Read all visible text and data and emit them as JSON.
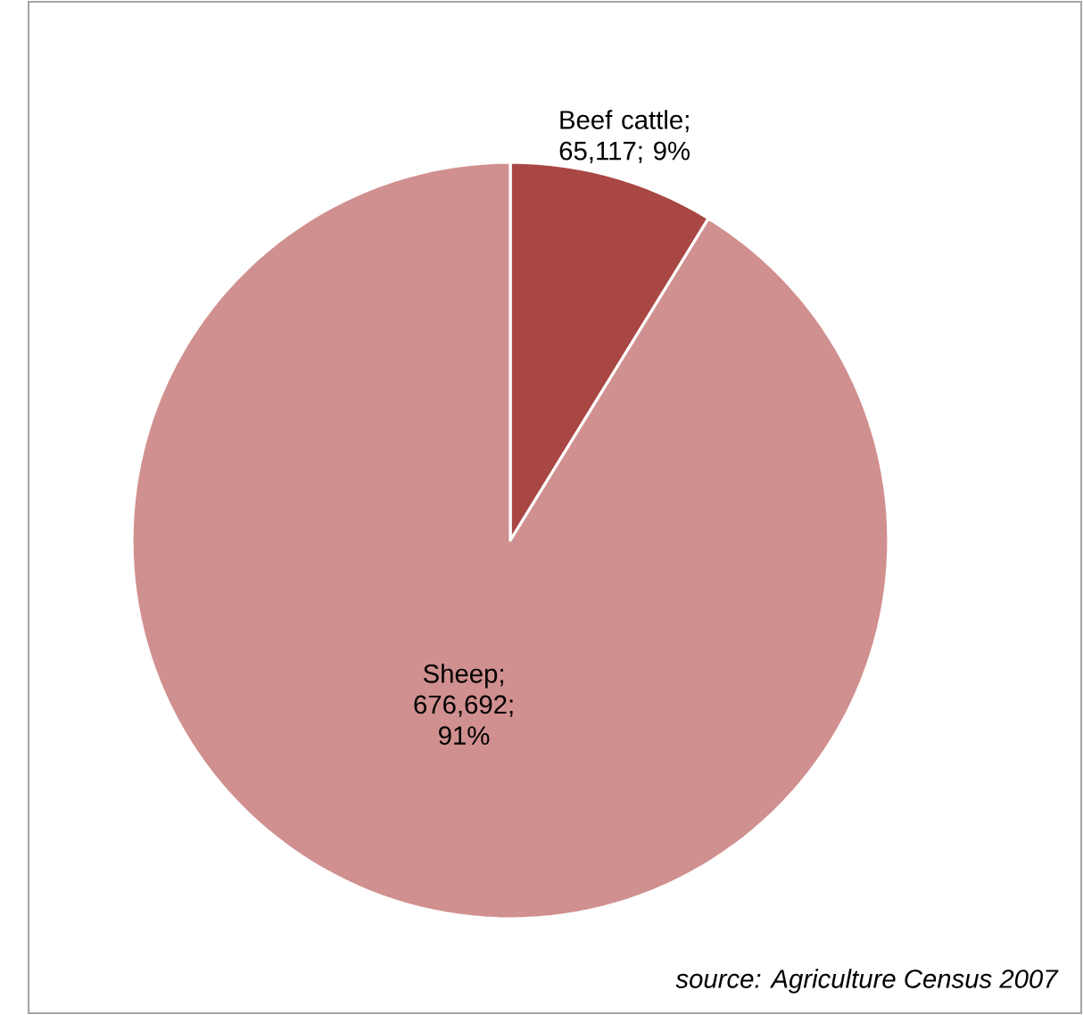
{
  "chart_data": {
    "type": "pie",
    "categories": [
      "Beef cattle",
      "Sheep"
    ],
    "values": [
      65117,
      676692
    ],
    "value_labels": [
      "; 65,117; 9%",
      "; 676,692; 91%"
    ],
    "colors": [
      "#a94744",
      "#d0908f"
    ],
    "annotations": [
      "source: Agriculture Census 2007"
    ]
  }
}
